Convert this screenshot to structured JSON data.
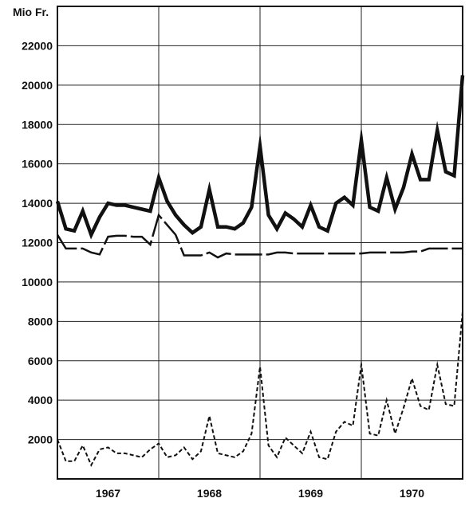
{
  "chart_data": {
    "type": "line",
    "ylabel": "Mio Fr.",
    "ylim": [
      0,
      24000
    ],
    "yticks": [
      2000,
      4000,
      6000,
      8000,
      10000,
      12000,
      14000,
      16000,
      18000,
      20000,
      22000
    ],
    "ytick_labels": [
      "2000",
      "4000",
      "6000",
      "8000",
      "10000",
      "12000",
      "14000",
      "16000",
      "18000",
      "20000",
      "22000"
    ],
    "xlim": [
      0,
      48
    ],
    "x_tick_labels": [
      "1967",
      "1968",
      "1969",
      "1970"
    ],
    "x_tick_positions": [
      6,
      18,
      30,
      42
    ],
    "x_gridlines": [
      12,
      24,
      36
    ],
    "grid": true,
    "series": [
      {
        "style": "thick-solid",
        "x": [
          0,
          1,
          2,
          3,
          4,
          5,
          6,
          7,
          8,
          9,
          10,
          11,
          12,
          13,
          14,
          15,
          16,
          17,
          18,
          19,
          20,
          21,
          22,
          23,
          24,
          25,
          26,
          27,
          28,
          29,
          30,
          31,
          32,
          33,
          34,
          35,
          36,
          37,
          38,
          39,
          40,
          41,
          42,
          43,
          44,
          45,
          46,
          47,
          48
        ],
        "values": [
          14100,
          12700,
          12600,
          13600,
          12400,
          13300,
          14000,
          13900,
          13900,
          13800,
          13700,
          13600,
          15300,
          14100,
          13400,
          12900,
          12500,
          12800,
          14700,
          12800,
          12800,
          12700,
          13000,
          13800,
          16900,
          13400,
          12700,
          13500,
          13200,
          12800,
          13900,
          12800,
          12600,
          14000,
          14300,
          13900,
          17200,
          13800,
          13600,
          15300,
          13700,
          14800,
          16500,
          15200,
          15200,
          17700,
          15600,
          15400,
          20500
        ]
      },
      {
        "style": "long-dash",
        "x": [
          0,
          1,
          2,
          3,
          4,
          5,
          6,
          7,
          8,
          9,
          10,
          11,
          12,
          13,
          14,
          15,
          16,
          17,
          18,
          19,
          20,
          21,
          22,
          23,
          24,
          25,
          26,
          27,
          28,
          29,
          30,
          31,
          32,
          33,
          34,
          35,
          36,
          37,
          38,
          39,
          40,
          41,
          42,
          43,
          44,
          45,
          46,
          47,
          48
        ],
        "values": [
          12400,
          11700,
          11700,
          11700,
          11500,
          11400,
          12300,
          12350,
          12350,
          12300,
          12300,
          11900,
          13400,
          12900,
          12400,
          11350,
          11350,
          11350,
          11500,
          11250,
          11450,
          11400,
          11400,
          11400,
          11400,
          11400,
          11500,
          11500,
          11450,
          11450,
          11450,
          11450,
          11450,
          11450,
          11450,
          11450,
          11450,
          11500,
          11500,
          11500,
          11500,
          11500,
          11550,
          11550,
          11700,
          11700,
          11700,
          11700,
          11700
        ]
      },
      {
        "style": "short-dash",
        "x": [
          0,
          1,
          2,
          3,
          4,
          5,
          6,
          7,
          8,
          9,
          10,
          11,
          12,
          13,
          14,
          15,
          16,
          17,
          18,
          19,
          20,
          21,
          22,
          23,
          24,
          25,
          26,
          27,
          28,
          29,
          30,
          31,
          32,
          33,
          34,
          35,
          36,
          37,
          38,
          39,
          40,
          41,
          42,
          43,
          44,
          45,
          46,
          47,
          48
        ],
        "values": [
          2000,
          900,
          900,
          1700,
          700,
          1500,
          1600,
          1300,
          1300,
          1200,
          1100,
          1500,
          1800,
          1100,
          1200,
          1600,
          1000,
          1400,
          3200,
          1300,
          1200,
          1100,
          1400,
          2300,
          5700,
          1700,
          1100,
          2100,
          1700,
          1300,
          2400,
          1100,
          1000,
          2400,
          2900,
          2700,
          5800,
          2300,
          2200,
          4000,
          2300,
          3600,
          5100,
          3700,
          3500,
          5800,
          3800,
          3700,
          8500
        ]
      }
    ]
  }
}
